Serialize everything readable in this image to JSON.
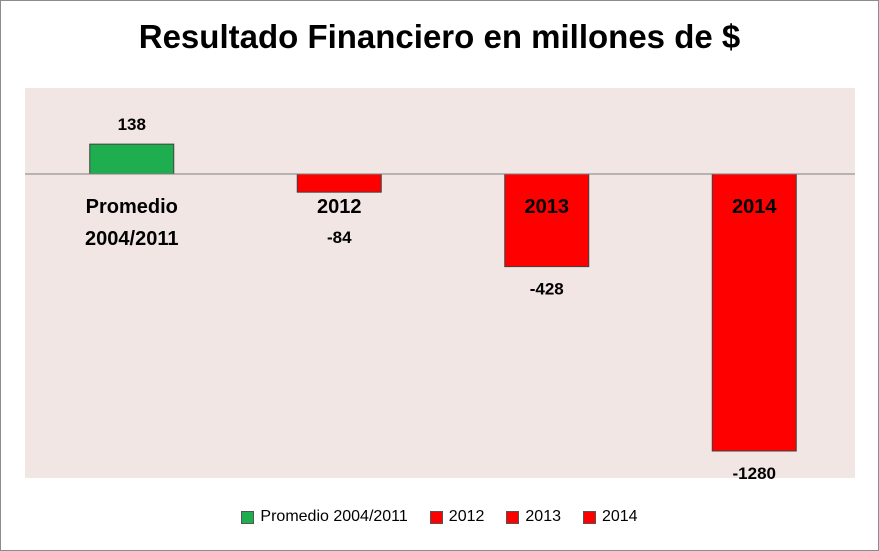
{
  "chart_data": {
    "type": "bar",
    "title": "Resultado Financiero en millones de $",
    "categories": [
      "Promedio 2004/2011",
      "2012",
      "2013",
      "2014"
    ],
    "category_lines": [
      [
        "Promedio",
        "2004/2011"
      ],
      [
        "2012"
      ],
      [
        "2013"
      ],
      [
        "2014"
      ]
    ],
    "values": [
      138,
      -84,
      -428,
      -1280
    ],
    "value_labels": [
      "138",
      "-84",
      "-428",
      "-1280"
    ],
    "colors": [
      "#1fae4f",
      "#ff0000",
      "#ff0000",
      "#ff0000"
    ],
    "ylim": [
      -1400,
      400
    ],
    "grid": false,
    "legend_position": "bottom",
    "plot_background": "#f2e6e4"
  },
  "legend": [
    {
      "label": "Promedio 2004/2011",
      "color": "#1fae4f"
    },
    {
      "label": "2012",
      "color": "#ff0000"
    },
    {
      "label": "2013",
      "color": "#ff0000"
    },
    {
      "label": "2014",
      "color": "#ff0000"
    }
  ]
}
